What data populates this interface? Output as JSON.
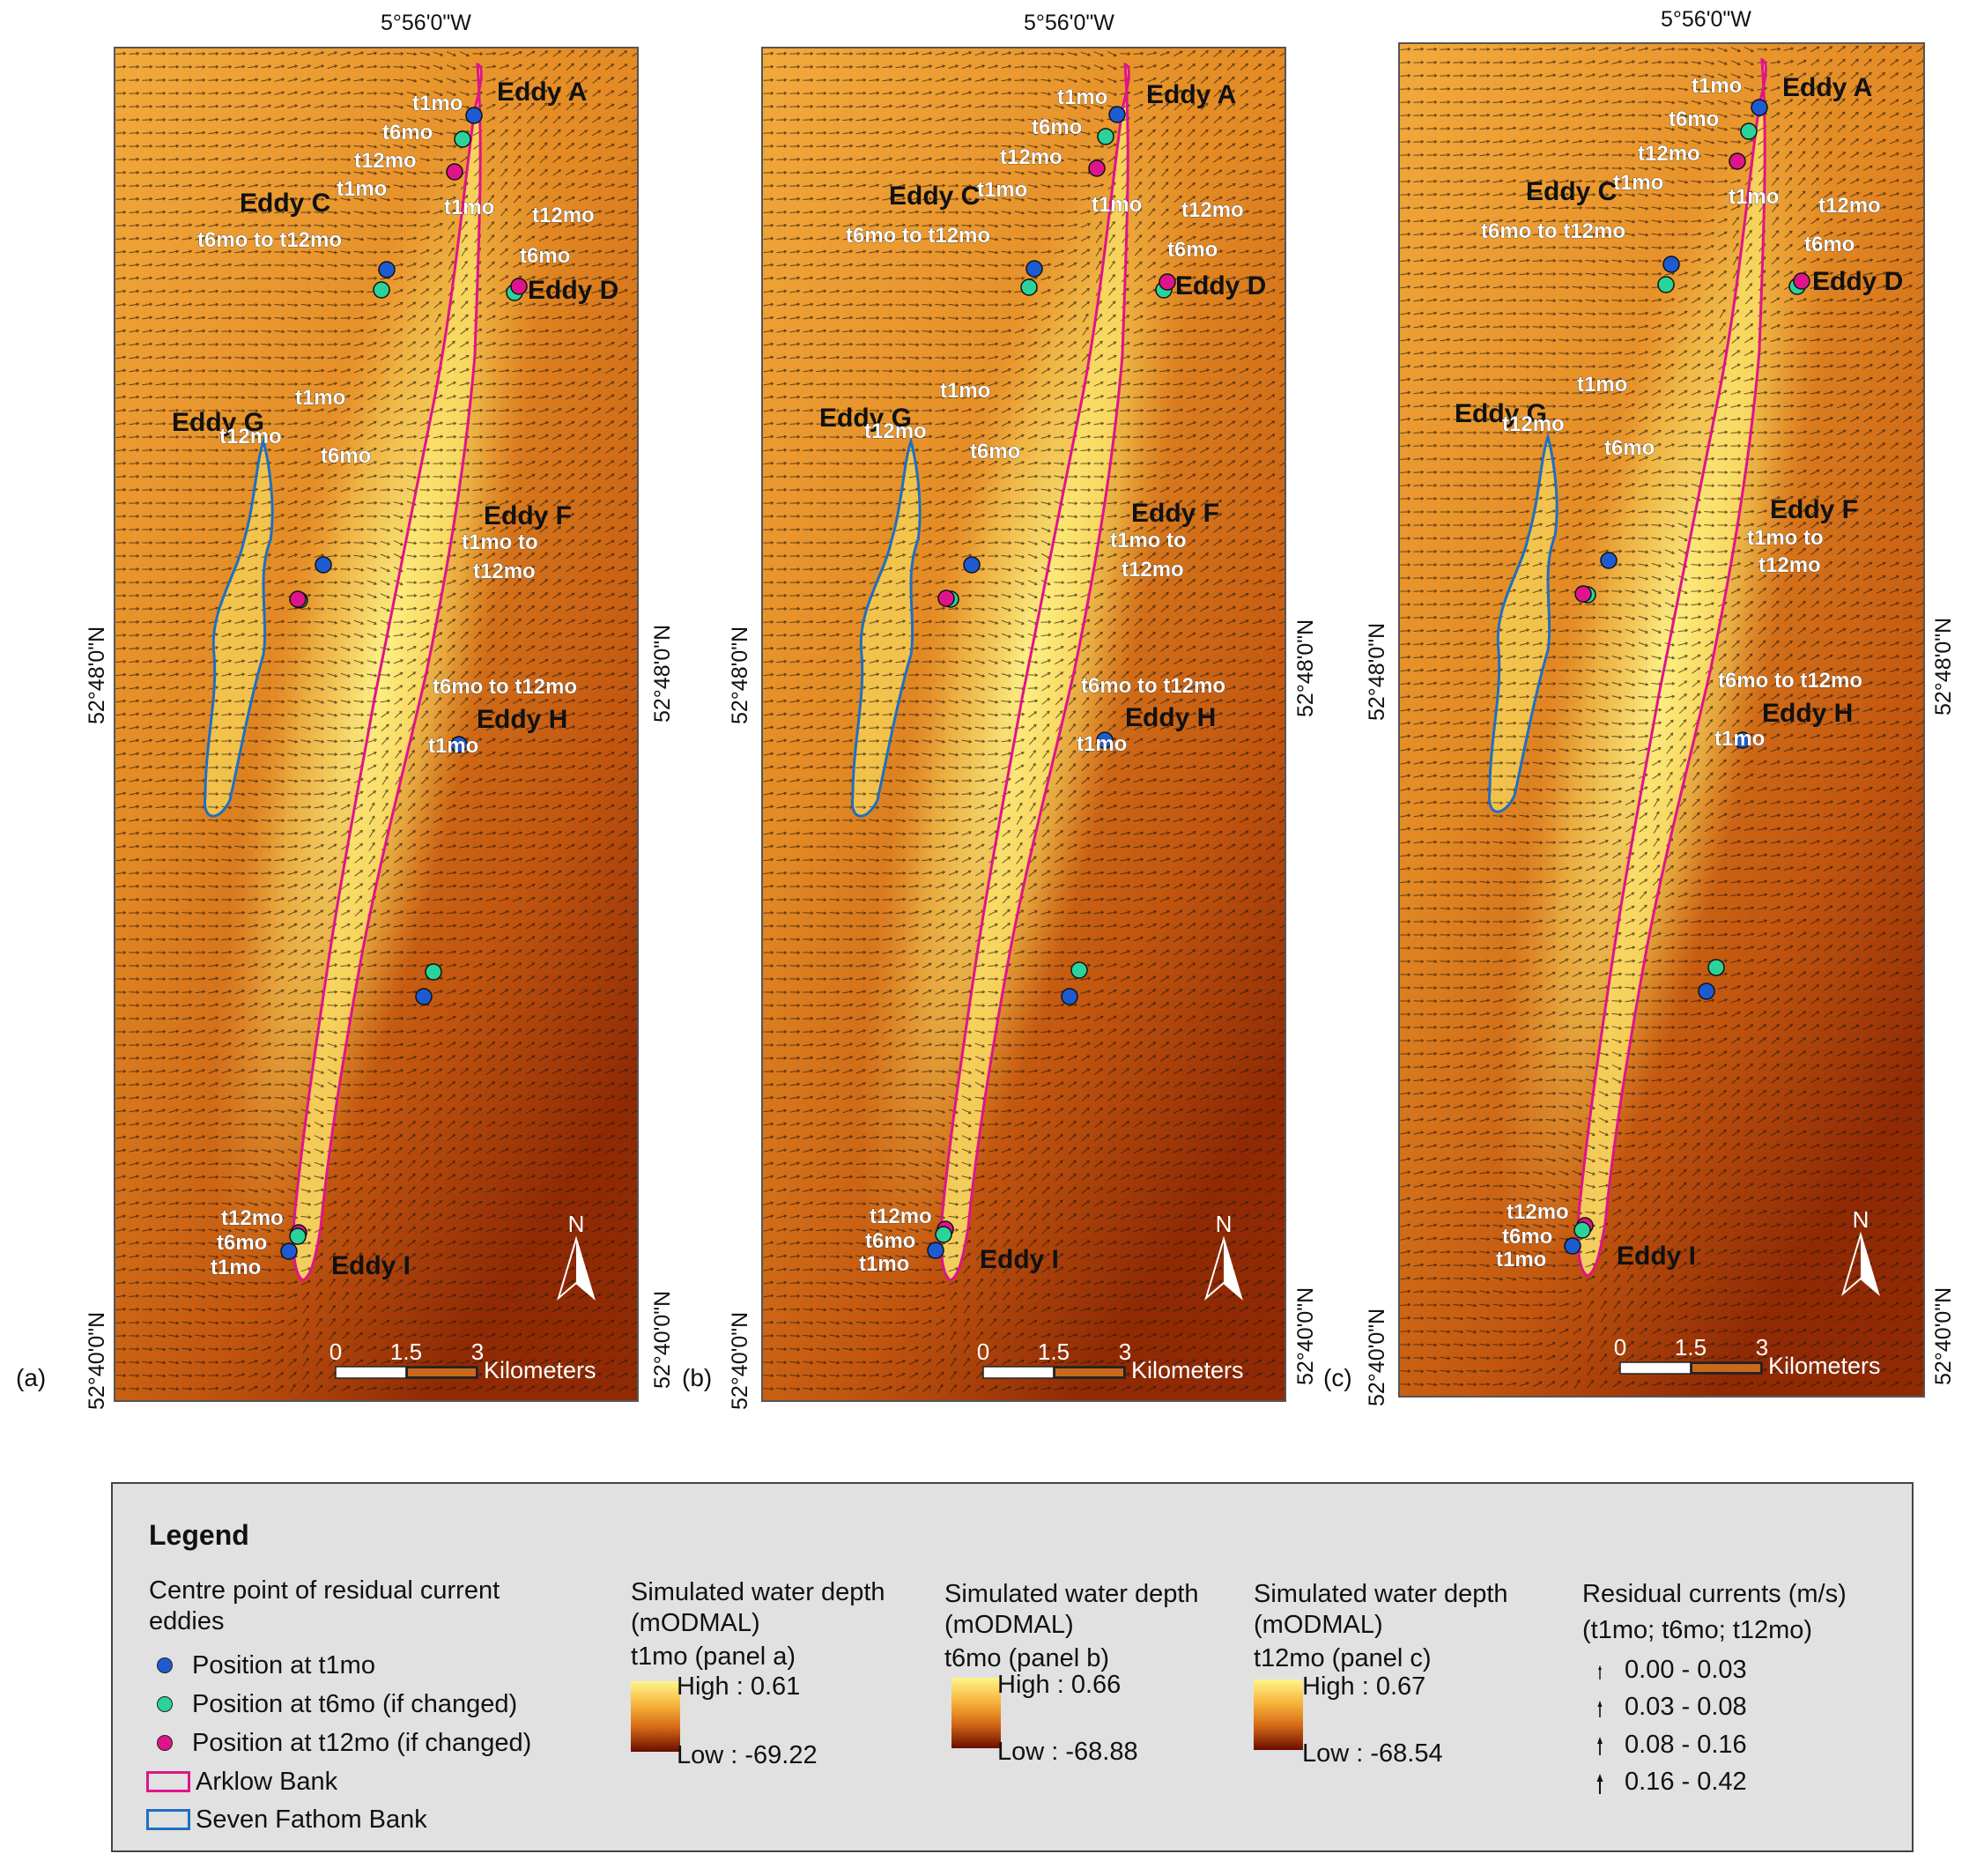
{
  "figure": {
    "top_coord": "5°56'0\"W",
    "bottom_coord": "5°56'0\"W",
    "left_coord_upper": "52°48'0\"N",
    "left_coord_lower": "52°40'0\"N",
    "right_coord_upper": "52°48'0\"N",
    "right_coord_lower": "52°40'0\"N",
    "scale_numbers": [
      "0",
      "1.5",
      "3"
    ],
    "scale_unit": "Kilometers",
    "north": "N",
    "panel_labels": [
      "(a)",
      "(b)",
      "(c)"
    ]
  },
  "panels": [
    {
      "id": "a",
      "labels": [
        {
          "text": "Eddy A",
          "bold": true
        },
        {
          "text": "t1mo"
        },
        {
          "text": "t6mo"
        },
        {
          "text": "t12mo"
        },
        {
          "text": "Eddy C",
          "bold": true
        },
        {
          "text": "t1mo"
        },
        {
          "text": "t6mo to t12mo"
        },
        {
          "text": "t1mo"
        },
        {
          "text": "t12mo"
        },
        {
          "text": "t6mo"
        },
        {
          "text": "Eddy D",
          "bold": true
        },
        {
          "text": "Eddy G",
          "bold": true
        },
        {
          "text": "t1mo"
        },
        {
          "text": "t12mo"
        },
        {
          "text": "t6mo"
        },
        {
          "text": "Eddy F",
          "bold": true
        },
        {
          "text": "t1mo to"
        },
        {
          "text": "t12mo"
        },
        {
          "text": "t6mo to t12mo"
        },
        {
          "text": "Eddy H",
          "bold": true
        },
        {
          "text": "t1mo"
        },
        {
          "text": "t12mo"
        },
        {
          "text": "t6mo"
        },
        {
          "text": "t1mo"
        },
        {
          "text": "Eddy I",
          "bold": true
        }
      ]
    },
    {
      "id": "b",
      "labels": [
        {
          "text": "t1mo"
        },
        {
          "text": "Eddy A",
          "bold": true
        },
        {
          "text": "t6mo"
        },
        {
          "text": "t12mo"
        },
        {
          "text": "t1mo"
        },
        {
          "text": "Eddy C",
          "bold": true
        },
        {
          "text": "t6mo to t12mo"
        },
        {
          "text": "t1mo"
        },
        {
          "text": "t12mo"
        },
        {
          "text": "t6mo"
        },
        {
          "text": "Eddy D",
          "bold": true
        },
        {
          "text": "Eddy G",
          "bold": true
        },
        {
          "text": "t1mo"
        },
        {
          "text": "t12mo"
        },
        {
          "text": "t6mo"
        },
        {
          "text": "Eddy F",
          "bold": true
        },
        {
          "text": "t1mo to"
        },
        {
          "text": "t12mo"
        },
        {
          "text": "t6mo to t12mo"
        },
        {
          "text": "Eddy H",
          "bold": true
        },
        {
          "text": "t1mo"
        },
        {
          "text": "t12mo"
        },
        {
          "text": "t6mo"
        },
        {
          "text": "t1mo"
        },
        {
          "text": "Eddy I",
          "bold": true
        }
      ]
    },
    {
      "id": "c",
      "labels": [
        {
          "text": "t1mo"
        },
        {
          "text": "Eddy A",
          "bold": true
        },
        {
          "text": "t6mo"
        },
        {
          "text": "t12mo"
        },
        {
          "text": "t1mo"
        },
        {
          "text": "Eddy C",
          "bold": true
        },
        {
          "text": "t6mo to t12mo"
        },
        {
          "text": "t1mo"
        },
        {
          "text": "t12mo"
        },
        {
          "text": "t6mo"
        },
        {
          "text": "Eddy D",
          "bold": true
        },
        {
          "text": "Eddy G",
          "bold": true
        },
        {
          "text": "t1mo"
        },
        {
          "text": "t12mo"
        },
        {
          "text": "t6mo"
        },
        {
          "text": "Eddy F",
          "bold": true
        },
        {
          "text": "t1mo to"
        },
        {
          "text": "t12mo"
        },
        {
          "text": "t6mo to t12mo"
        },
        {
          "text": "Eddy H",
          "bold": true
        },
        {
          "text": "t1mo"
        },
        {
          "text": "t12mo"
        },
        {
          "text": "t6mo"
        },
        {
          "text": "t1mo"
        },
        {
          "text": "Eddy I",
          "bold": true
        }
      ]
    }
  ],
  "legend": {
    "title": "Legend",
    "centre_header_1": "Centre point of residual current",
    "centre_header_2": "eddies",
    "pos_t1": "Position at t1mo",
    "pos_t6": "Position at t6mo (if changed)",
    "pos_t12": "Position at  t12mo (if changed)",
    "arklow": "Arklow Bank",
    "seven": "Seven Fathom Bank",
    "depth_a": {
      "h1": "Simulated water depth",
      "h2": "(mODMAL)",
      "h3": "t1mo (panel a)",
      "high": "High : 0.61",
      "low": "Low : -69.22"
    },
    "depth_b": {
      "h1": "Simulated water depth",
      "h2": "(mODMAL)",
      "h3": "t6mo (panel b)",
      "high": "High : 0.66",
      "low": "Low : -68.88"
    },
    "depth_c": {
      "h1": "Simulated water depth",
      "h2": "(mODMAL)",
      "h3": "t12mo (panel c)",
      "high": "High : 0.67",
      "low": "Low : -68.54"
    },
    "resid_h1": "Residual currents (m/s)",
    "resid_h2": "(t1mo; t6mo; t12mo)",
    "resid_classes": [
      "0.00 - 0.03",
      "0.03 - 0.08",
      "0.08 - 0.16",
      "0.16 - 0.42"
    ]
  },
  "colors": {
    "position_t1mo": "#1e5bd0",
    "position_t6mo": "#2ad39a",
    "position_t12mo": "#e0148a",
    "arklow_bank": "#e0148a",
    "seven_fathom_bank": "#1f6fc2",
    "depth_high": "#fff58a",
    "depth_low": "#6b0c00"
  }
}
